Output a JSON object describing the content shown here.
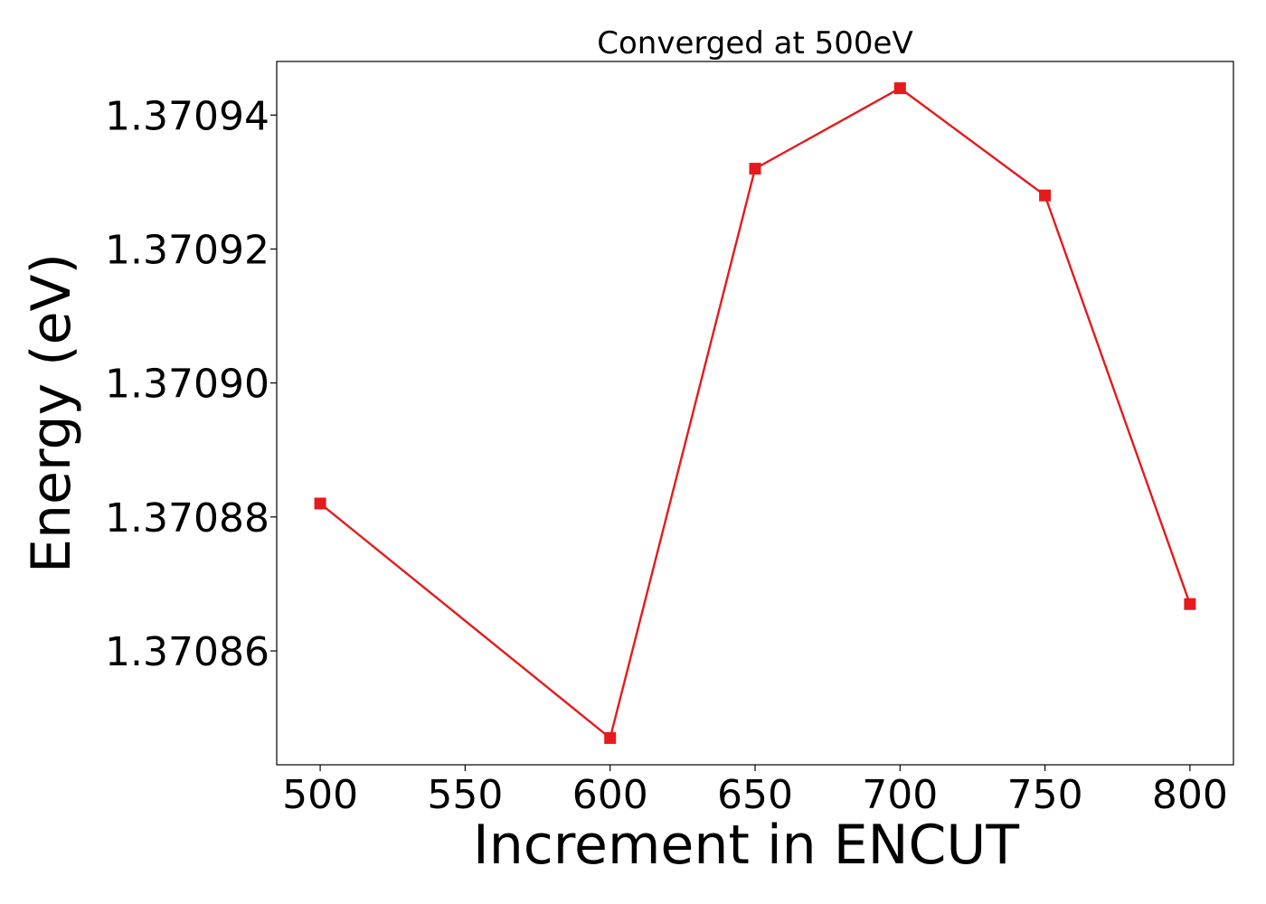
{
  "chart_data": {
    "type": "line",
    "title": "Converged at 500eV",
    "xlabel": "Increment in ENCUT",
    "ylabel": "Energy (eV)",
    "x": [
      500,
      600,
      650,
      700,
      750,
      800
    ],
    "series": [
      {
        "values": [
          1.370882,
          1.370847,
          1.370932,
          1.370944,
          1.370928,
          1.370867
        ],
        "color": "#e41a1c",
        "marker": "square"
      }
    ],
    "xticks": [
      500,
      550,
      600,
      650,
      700,
      750,
      800
    ],
    "xtick_labels": [
      "500",
      "550",
      "600",
      "650",
      "700",
      "750",
      "800"
    ],
    "yticks": [
      1.37086,
      1.37088,
      1.3709,
      1.37092,
      1.37094
    ],
    "ytick_labels": [
      "1.37086",
      "1.37088",
      "1.37090",
      "1.37092",
      "1.37094"
    ],
    "xlim": [
      485,
      815
    ],
    "ylim": [
      1.370843,
      1.370948
    ],
    "grid": false,
    "legend": false
  }
}
